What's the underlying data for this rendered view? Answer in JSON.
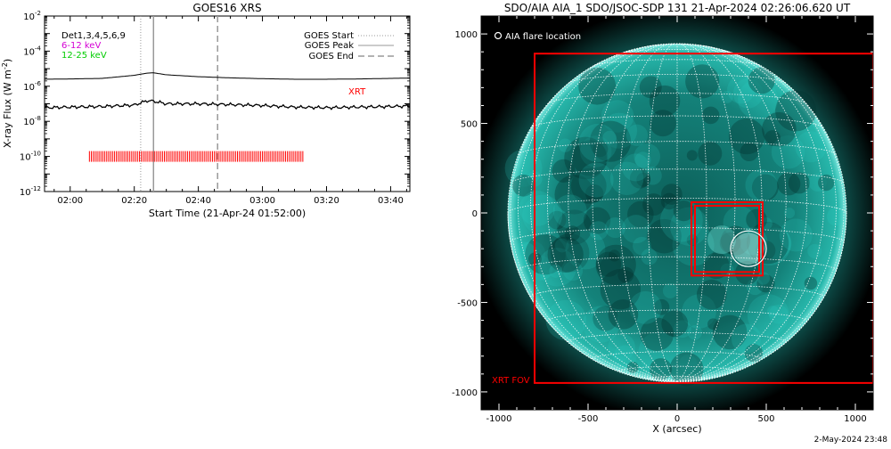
{
  "left_panel": {
    "title": "GOES16 XRS",
    "ylabel": "X-ray Flux (W m",
    "ylabel_exp": "-2",
    "ylabel_close": ")",
    "xlabel": "Start Time (21-Apr-24 01:52:00)",
    "tick_labels_x": [
      "02:00",
      "02:20",
      "02:40",
      "03:00",
      "03:20",
      "03:40"
    ],
    "tick_labels_y": [
      "-12",
      "-10",
      "-8",
      "-6",
      "-4",
      "-2"
    ],
    "rhessi_label": "Det1,3,4,5,6,9",
    "energy_band_1": "6-12 keV",
    "energy_band_2": "12-25 keV",
    "xrt_label": "XRT",
    "legend_start": "GOES Start",
    "legend_peak": "GOES Peak",
    "legend_end": "GOES End",
    "colors": {
      "band1": "#d400d4",
      "band2": "#00cc00",
      "xrt": "#ff0000",
      "dotted": "#999999",
      "peak": "#999999",
      "end": "#999999"
    }
  },
  "right_panel": {
    "title": "SDO/AIA AIA_1 SDO/JSOC-SDP 131 21-Apr-2024 02:26:06.620 UT",
    "xlabel": "X (arcsec)",
    "tick_labels_x": [
      "-1000",
      "-500",
      "0",
      "500",
      "1000"
    ],
    "tick_labels_y": [
      "1000",
      "500",
      "0",
      "-500",
      "-1000"
    ],
    "flare_legend": "AIA flare location",
    "xrt_fov_label": "XRT FOV",
    "colors": {
      "sun": "#1fb7ad",
      "box": "#ff0000",
      "grid": "#ffffff"
    }
  },
  "footer": {
    "date": "2-May-2024 23:48"
  },
  "chart_data": [
    {
      "type": "line",
      "title": "GOES16 XRS",
      "xlabel": "Start Time (21-Apr-24 01:52:00)",
      "ylabel": "X-ray Flux (W m^-2)",
      "y_scale": "log",
      "xlim": [
        "01:52",
        "03:46"
      ],
      "ylim": [
        1e-12,
        0.01
      ],
      "x": [
        "01:52",
        "02:00",
        "02:10",
        "02:20",
        "02:24",
        "02:26",
        "02:30",
        "02:40",
        "02:50",
        "03:00",
        "03:10",
        "03:20",
        "03:30",
        "03:40",
        "03:46"
      ],
      "series": [
        {
          "values": [
            2.5e-06,
            2.6e-06,
            2.8e-06,
            4.2e-06,
            5.6e-06,
            5.8e-06,
            4.5e-06,
            3.5e-06,
            3e-06,
            2.7e-06,
            2.5e-06,
            2.5e-06,
            2.6e-06,
            2.8e-06,
            2.9e-06
          ]
        },
        {
          "values": [
            6e-08,
            6.5e-08,
            7e-08,
            8.5e-08,
            1.5e-07,
            1.4e-07,
            1e-07,
            1e-07,
            9e-08,
            8e-08,
            6.5e-08,
            6e-08,
            6.5e-08,
            7e-08,
            7.5e-08
          ]
        }
      ],
      "events": {
        "goes_start": "02:22",
        "goes_peak": "02:26",
        "goes_end": "02:46"
      },
      "xrt_coverage": [
        "02:06",
        "03:13"
      ],
      "xrt_level": 1e-10
    },
    {
      "type": "image",
      "title": "SDO/AIA AIA_1 SDO/JSOC-SDP 131 21-Apr-2024 02:26:06.620 UT",
      "xlabel": "X (arcsec)",
      "xlim": [
        -1100,
        1100
      ],
      "ylim": [
        -1100,
        1100
      ],
      "xticks": [
        -1000,
        -500,
        0,
        500,
        1000
      ],
      "yticks": [
        -1000,
        -500,
        0,
        500,
        1000
      ],
      "xrt_fov": {
        "x": [
          -800,
          1100
        ],
        "y": [
          -950,
          890
        ]
      },
      "xrt_target_box": {
        "x": [
          80,
          480
        ],
        "y": [
          -350,
          60
        ]
      },
      "aia_flare_location": {
        "x": 400,
        "y": -200
      }
    }
  ]
}
